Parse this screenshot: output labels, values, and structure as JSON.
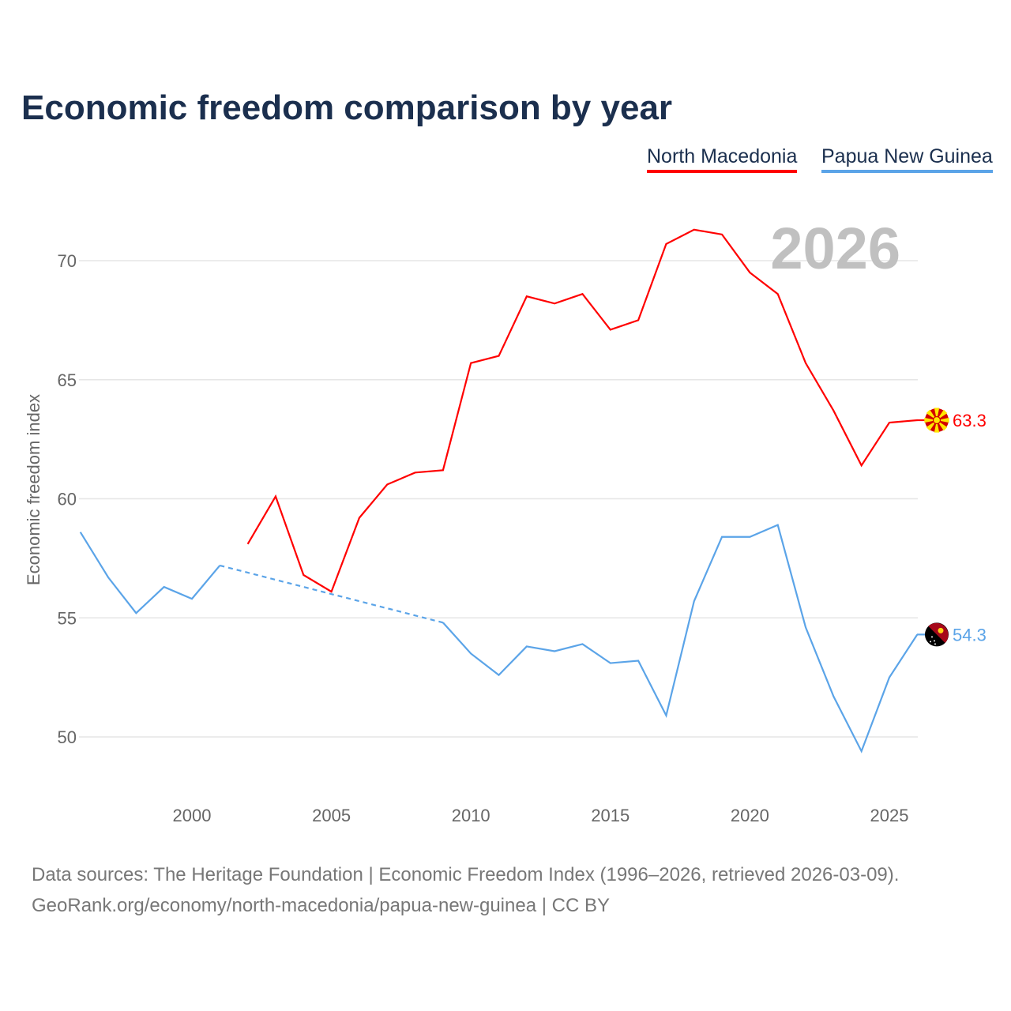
{
  "chart_data": {
    "type": "line",
    "title": "Economic freedom comparison by year",
    "ylabel": "Economic freedom index",
    "xlabel": "",
    "xlim": [
      1996,
      2026
    ],
    "ylim": [
      46.5,
      73
    ],
    "yticks": [
      50,
      55,
      60,
      65,
      70
    ],
    "xticks": [
      2000,
      2005,
      2010,
      2015,
      2020,
      2025
    ],
    "grid": true,
    "year_watermark": "2026",
    "legend_placement": "top-right",
    "x": [
      1996,
      1997,
      1998,
      1999,
      2000,
      2001,
      2002,
      2003,
      2004,
      2005,
      2006,
      2007,
      2008,
      2009,
      2010,
      2011,
      2012,
      2013,
      2014,
      2015,
      2016,
      2017,
      2018,
      2019,
      2020,
      2021,
      2022,
      2023,
      2024,
      2025,
      2026
    ],
    "series": [
      {
        "name": "North Macedonia",
        "color": "#ff0000",
        "end_label": "63.3",
        "flag": "north-macedonia-flag",
        "values": [
          null,
          null,
          null,
          null,
          null,
          null,
          58.1,
          60.1,
          56.8,
          56.1,
          59.2,
          60.6,
          61.1,
          61.2,
          65.7,
          66.0,
          68.5,
          68.2,
          68.6,
          67.1,
          67.5,
          70.7,
          71.3,
          71.1,
          69.5,
          68.6,
          65.7,
          63.7,
          61.4,
          63.2,
          63.3
        ]
      },
      {
        "name": "Papua New Guinea",
        "color": "#5ba4e8",
        "end_label": "54.3",
        "flag": "papua-new-guinea-flag",
        "values": [
          58.6,
          56.7,
          55.2,
          56.3,
          55.8,
          57.2,
          null,
          null,
          null,
          null,
          null,
          null,
          null,
          54.8,
          53.5,
          52.6,
          53.8,
          53.6,
          53.9,
          53.1,
          53.2,
          50.9,
          55.7,
          58.4,
          58.4,
          58.9,
          54.6,
          51.7,
          49.4,
          52.5,
          54.3
        ]
      }
    ]
  },
  "source": {
    "line1": "Data sources: The Heritage Foundation | Economic Freedom Index (1996–2026, retrieved 2026-03-09).",
    "line2": "GeoRank.org/economy/north-macedonia/papua-new-guinea | CC BY"
  }
}
